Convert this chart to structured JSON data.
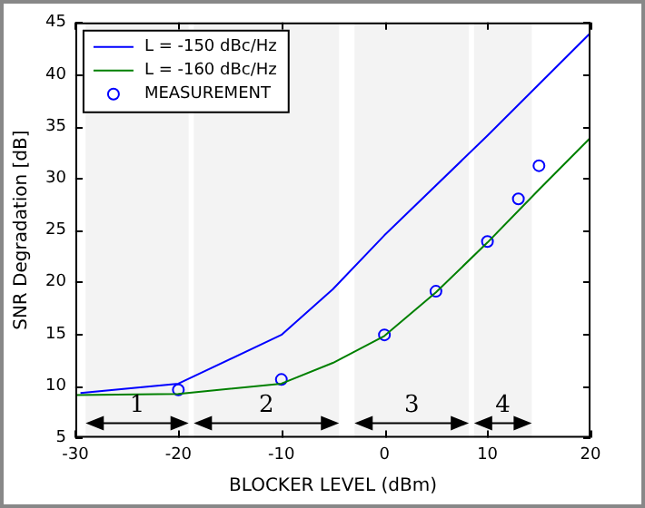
{
  "chart_data": {
    "type": "line",
    "xlabel": "BLOCKER LEVEL (dBm)",
    "ylabel": "SNR Degradation [dB]",
    "xlim": [
      -30,
      20
    ],
    "xticks": [
      -30,
      -20,
      -10,
      0,
      10,
      20
    ],
    "ylim": [
      5,
      45
    ],
    "yticks": [
      5,
      10,
      15,
      20,
      25,
      30,
      35,
      40,
      45
    ],
    "grid": false,
    "legend": "top left",
    "series": [
      {
        "name": "L = -150 dBc/Hz",
        "color": "#0000ff",
        "marker": "none",
        "x": [
          -29.5,
          -20,
          -10,
          -5,
          0,
          10,
          20
        ],
        "values": [
          9.3,
          10.2,
          14.9,
          19.3,
          24.5,
          34.1,
          44
        ]
      },
      {
        "name": "L = -160 dBc/Hz",
        "color": "#008000",
        "marker": "none",
        "x": [
          -30,
          -20,
          -10,
          -5,
          0,
          5,
          10,
          15,
          20
        ],
        "values": [
          9.1,
          9.2,
          10.2,
          12.2,
          14.8,
          19,
          23.8,
          28.9,
          33.9
        ]
      },
      {
        "name": "MEASUREMENT",
        "type": "scatter",
        "color": "#0000ff",
        "marker": "circle",
        "x": [
          -20,
          -10,
          0,
          5,
          10,
          13,
          15
        ],
        "values": [
          9.6,
          10.6,
          14.9,
          19.1,
          23.9,
          28,
          31.2
        ]
      }
    ],
    "bands": [
      {
        "axis": "x",
        "from": -29,
        "to": -19,
        "label": "1",
        "color": "#f3f3f3"
      },
      {
        "axis": "x",
        "from": -18.5,
        "to": -4.4,
        "label": "2",
        "color": "#f3f3f3"
      },
      {
        "axis": "x",
        "from": -2.9,
        "to": 8.2,
        "label": "3",
        "color": "#f3f3f3"
      },
      {
        "axis": "x",
        "from": 8.7,
        "to": 14.3,
        "label": "4",
        "color": "#f3f3f3"
      }
    ]
  }
}
